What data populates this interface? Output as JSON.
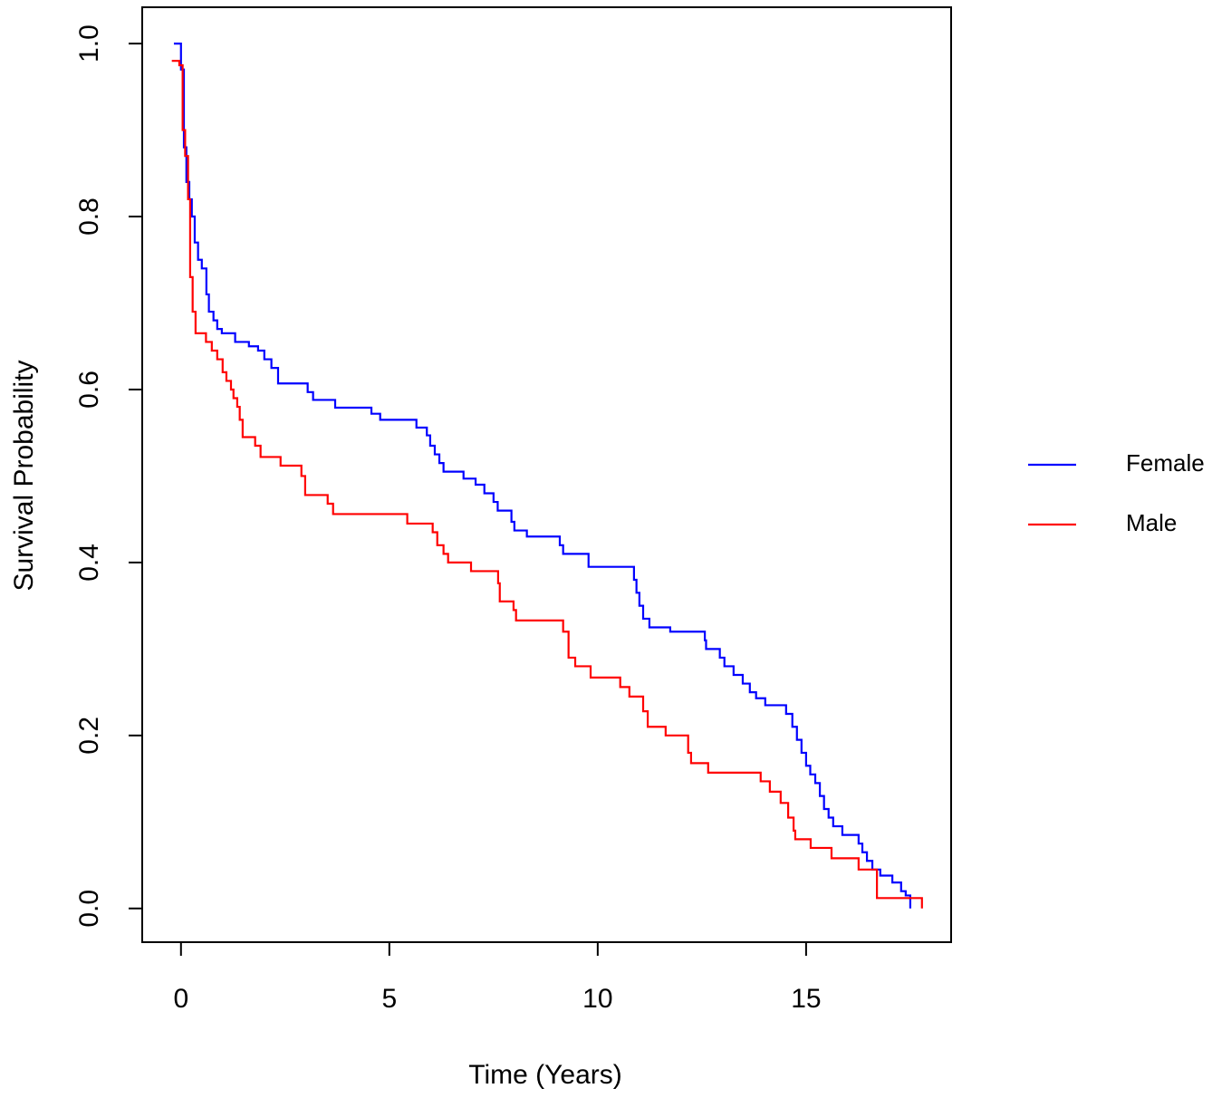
{
  "chart_data": {
    "type": "step",
    "xlabel": "Time (Years)",
    "ylabel": "Survival Probability",
    "xlim": [
      -0.93,
      18.48
    ],
    "ylim": [
      -0.039,
      1.042
    ],
    "xticks": [
      0,
      5,
      10,
      15
    ],
    "yticks": [
      {
        "value": 0,
        "label": "0.0"
      },
      0.2,
      0.4,
      0.6,
      0.8,
      {
        "value": 1,
        "label": "1.0"
      }
    ],
    "legend": "right",
    "series": [
      {
        "name": "Female",
        "color": "#0000ff",
        "x": [
          -0.17,
          0.0,
          0.07,
          0.13,
          0.2,
          0.26,
          0.33,
          0.41,
          0.5,
          0.61,
          0.67,
          0.78,
          0.87,
          0.98,
          1.3,
          1.63,
          1.85,
          2.0,
          2.17,
          2.33,
          3.04,
          3.17,
          3.7,
          4.57,
          4.78,
          5.65,
          5.9,
          5.98,
          6.09,
          6.2,
          6.3,
          6.78,
          7.07,
          7.28,
          7.5,
          7.6,
          7.93,
          8.0,
          8.3,
          9.09,
          9.17,
          9.78,
          10.87,
          10.93,
          11.0,
          11.09,
          11.24,
          11.74,
          12.57,
          12.6,
          12.93,
          13.04,
          13.26,
          13.48,
          13.65,
          13.8,
          14.02,
          14.52,
          14.67,
          14.78,
          14.89,
          15.0,
          15.1,
          15.22,
          15.33,
          15.43,
          15.54,
          15.65,
          15.87,
          16.26,
          16.35,
          16.46,
          16.59,
          16.78,
          17.07,
          17.28,
          17.39,
          17.5
        ],
        "values": [
          1.0,
          0.97,
          0.88,
          0.84,
          0.82,
          0.8,
          0.77,
          0.75,
          0.74,
          0.71,
          0.69,
          0.68,
          0.67,
          0.665,
          0.655,
          0.65,
          0.645,
          0.635,
          0.625,
          0.607,
          0.597,
          0.588,
          0.579,
          0.572,
          0.565,
          0.556,
          0.547,
          0.535,
          0.525,
          0.515,
          0.505,
          0.497,
          0.49,
          0.48,
          0.47,
          0.46,
          0.447,
          0.437,
          0.43,
          0.42,
          0.41,
          0.395,
          0.38,
          0.365,
          0.35,
          0.335,
          0.325,
          0.32,
          0.31,
          0.3,
          0.29,
          0.28,
          0.27,
          0.26,
          0.25,
          0.243,
          0.235,
          0.225,
          0.21,
          0.195,
          0.18,
          0.165,
          0.155,
          0.145,
          0.13,
          0.115,
          0.105,
          0.095,
          0.085,
          0.075,
          0.065,
          0.055,
          0.045,
          0.038,
          0.03,
          0.02,
          0.015,
          0.0
        ]
      },
      {
        "name": "Male",
        "color": "#ff0000",
        "x": [
          -0.22,
          -0.04,
          0.04,
          0.1,
          0.17,
          0.22,
          0.28,
          0.35,
          0.6,
          0.74,
          0.87,
          1.0,
          1.09,
          1.2,
          1.26,
          1.35,
          1.41,
          1.48,
          1.78,
          1.91,
          2.39,
          2.89,
          2.98,
          3.52,
          3.65,
          5.43,
          6.04,
          6.15,
          6.3,
          6.41,
          6.96,
          7.61,
          7.65,
          7.98,
          8.04,
          9.17,
          9.3,
          9.46,
          9.83,
          10.54,
          10.76,
          11.09,
          11.2,
          11.63,
          12.17,
          12.24,
          12.65,
          13.91,
          14.13,
          14.39,
          14.57,
          14.7,
          14.74,
          15.11,
          15.61,
          16.26,
          16.7,
          17.78
        ],
        "values": [
          0.98,
          0.975,
          0.9,
          0.87,
          0.82,
          0.73,
          0.69,
          0.665,
          0.655,
          0.645,
          0.635,
          0.62,
          0.61,
          0.6,
          0.59,
          0.58,
          0.565,
          0.545,
          0.535,
          0.522,
          0.512,
          0.5,
          0.478,
          0.468,
          0.456,
          0.445,
          0.435,
          0.42,
          0.41,
          0.4,
          0.39,
          0.376,
          0.355,
          0.345,
          0.333,
          0.32,
          0.29,
          0.28,
          0.267,
          0.256,
          0.245,
          0.228,
          0.21,
          0.2,
          0.18,
          0.168,
          0.157,
          0.147,
          0.135,
          0.122,
          0.105,
          0.09,
          0.08,
          0.07,
          0.058,
          0.045,
          0.012,
          0.0
        ]
      }
    ]
  }
}
